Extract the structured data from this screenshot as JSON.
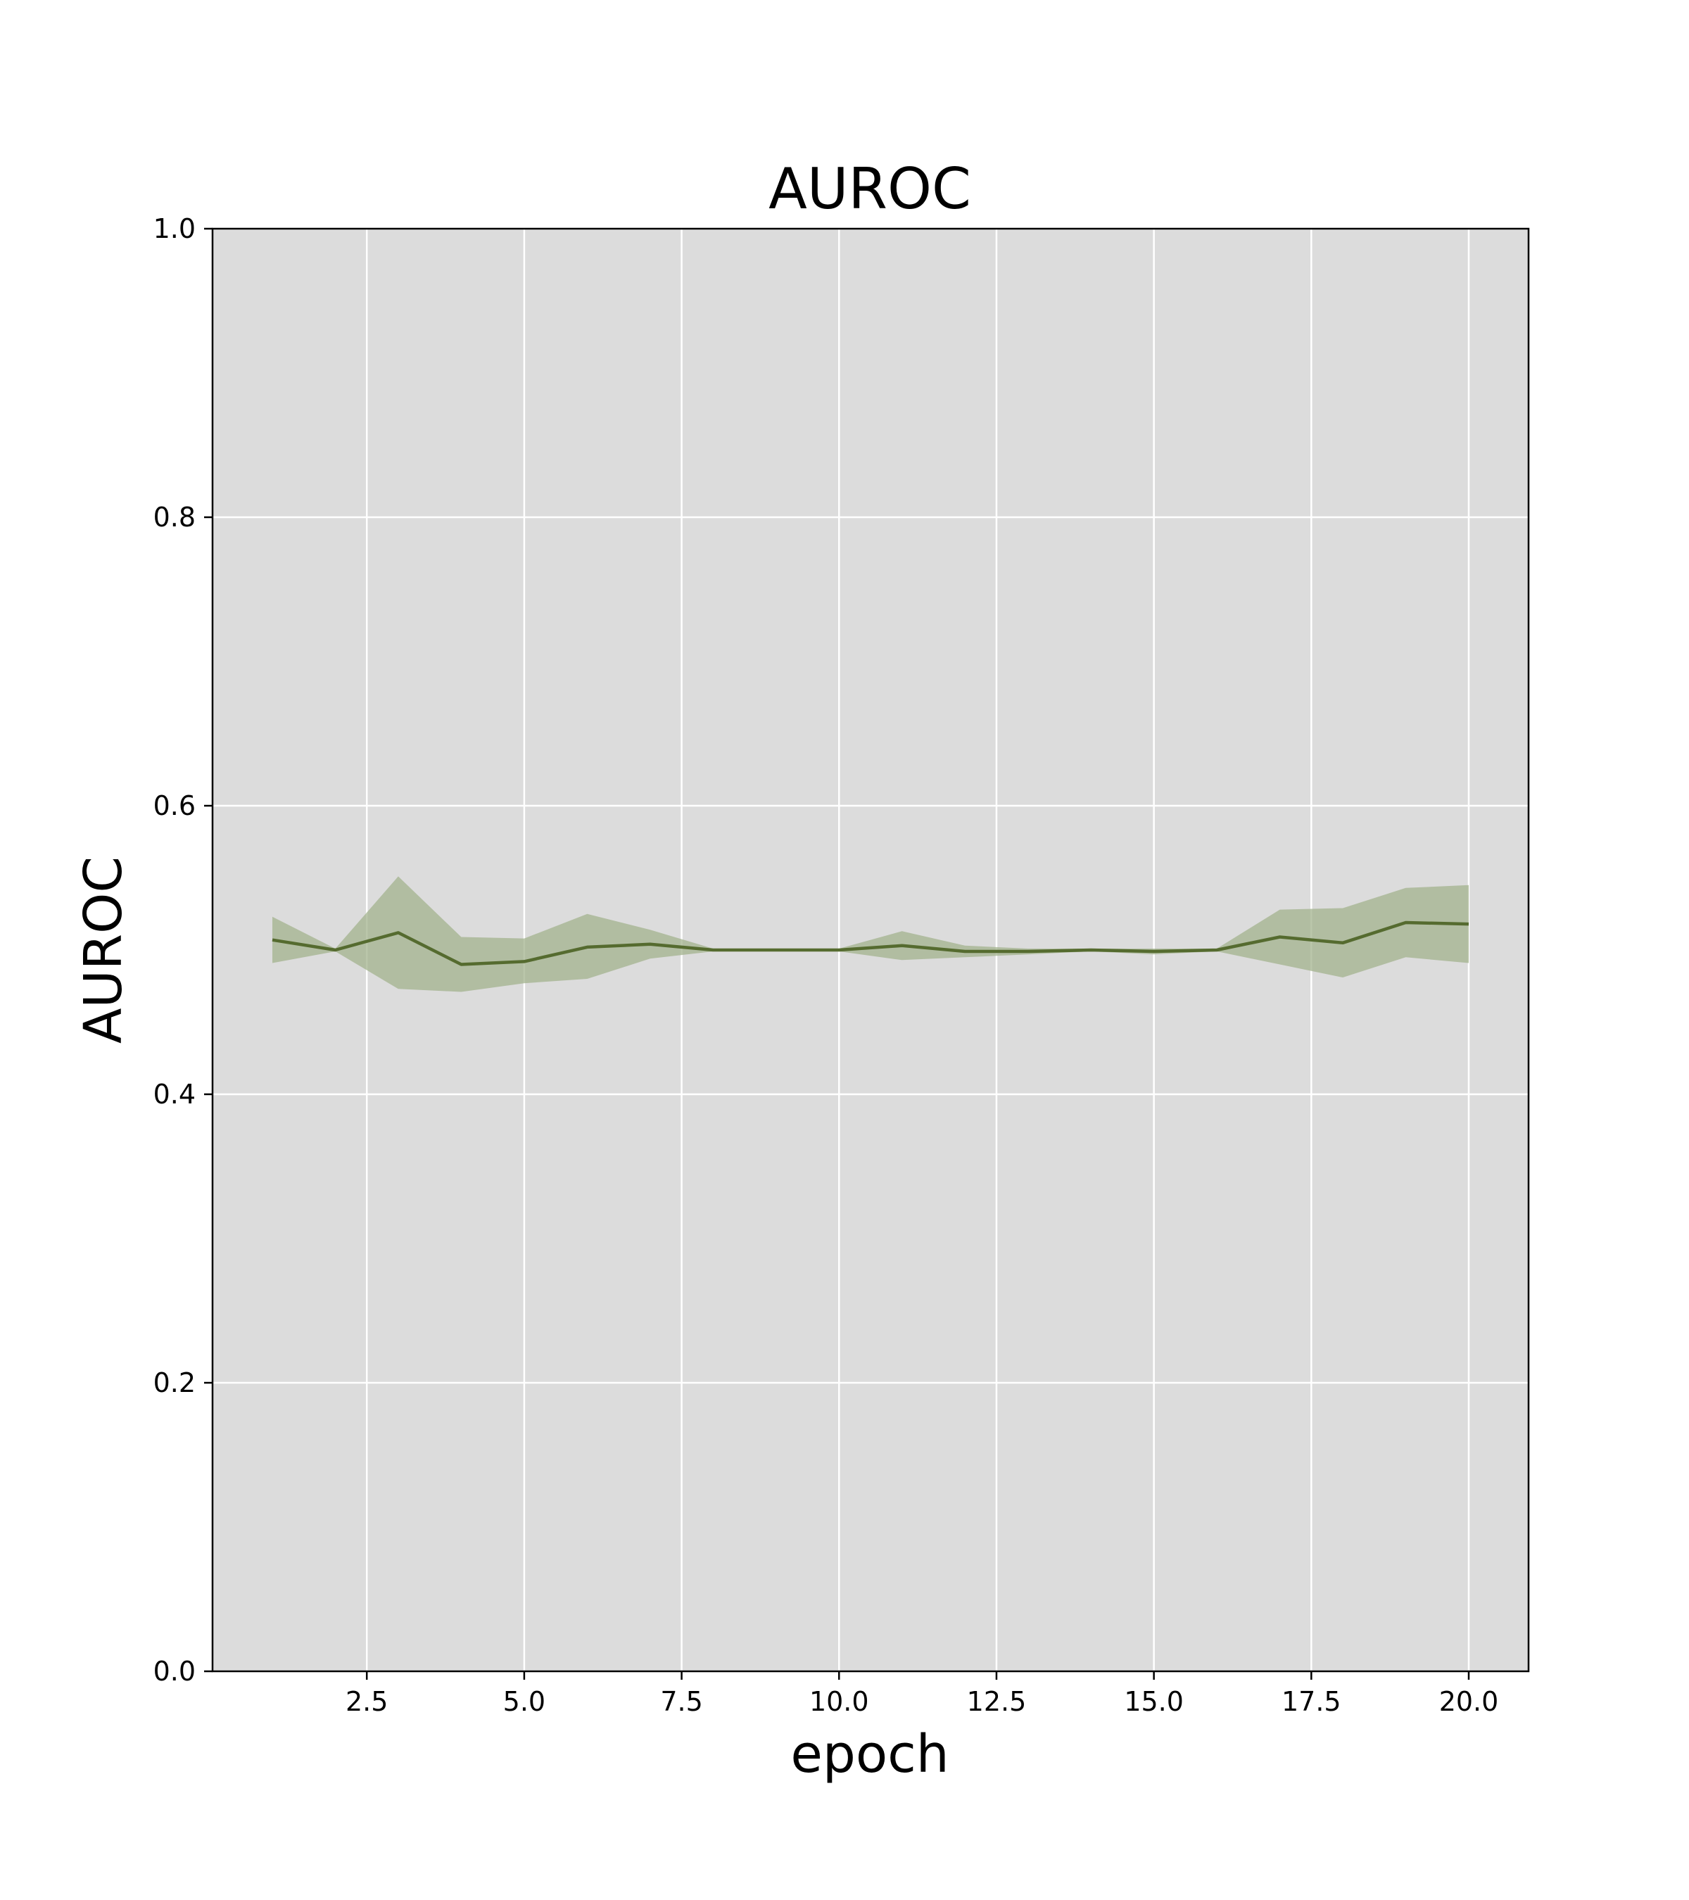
{
  "chart_data": {
    "type": "line",
    "title": "AUROC",
    "xlabel": "epoch",
    "ylabel": "AUROC",
    "xlim": [
      0.05,
      20.95
    ],
    "ylim": [
      0.0,
      1.0
    ],
    "xticks": [
      2.5,
      5.0,
      7.5,
      10.0,
      12.5,
      15.0,
      17.5,
      20.0
    ],
    "xtick_labels": [
      "2.5",
      "5.0",
      "7.5",
      "10.0",
      "12.5",
      "15.0",
      "17.5",
      "20.0"
    ],
    "yticks": [
      0.0,
      0.2,
      0.4,
      0.6,
      0.8,
      1.0
    ],
    "ytick_labels": [
      "0.0",
      "0.2",
      "0.4",
      "0.6",
      "0.8",
      "1.0"
    ],
    "grid": true,
    "colors": {
      "line": "#556b2f",
      "band": "#a3b38d",
      "plot_background": "#dcdcdc",
      "grid": "#ffffff"
    },
    "series": [
      {
        "x": [
          1,
          2,
          3,
          4,
          5,
          6,
          7,
          8,
          9,
          10,
          11,
          12,
          13,
          14,
          15,
          16,
          17,
          18,
          19,
          20
        ],
        "values": [
          0.507,
          0.5,
          0.512,
          0.49,
          0.492,
          0.502,
          0.504,
          0.5,
          0.5,
          0.5,
          0.503,
          0.499,
          0.499,
          0.5,
          0.499,
          0.5,
          0.509,
          0.505,
          0.519,
          0.518
        ],
        "lower": [
          0.491,
          0.499,
          0.473,
          0.471,
          0.477,
          0.48,
          0.494,
          0.499,
          0.499,
          0.499,
          0.493,
          0.495,
          0.497,
          0.499,
          0.497,
          0.499,
          0.49,
          0.481,
          0.495,
          0.491
        ],
        "upper": [
          0.523,
          0.501,
          0.551,
          0.509,
          0.508,
          0.525,
          0.514,
          0.501,
          0.501,
          0.501,
          0.513,
          0.503,
          0.501,
          0.501,
          0.501,
          0.501,
          0.528,
          0.529,
          0.543,
          0.545
        ]
      }
    ]
  }
}
